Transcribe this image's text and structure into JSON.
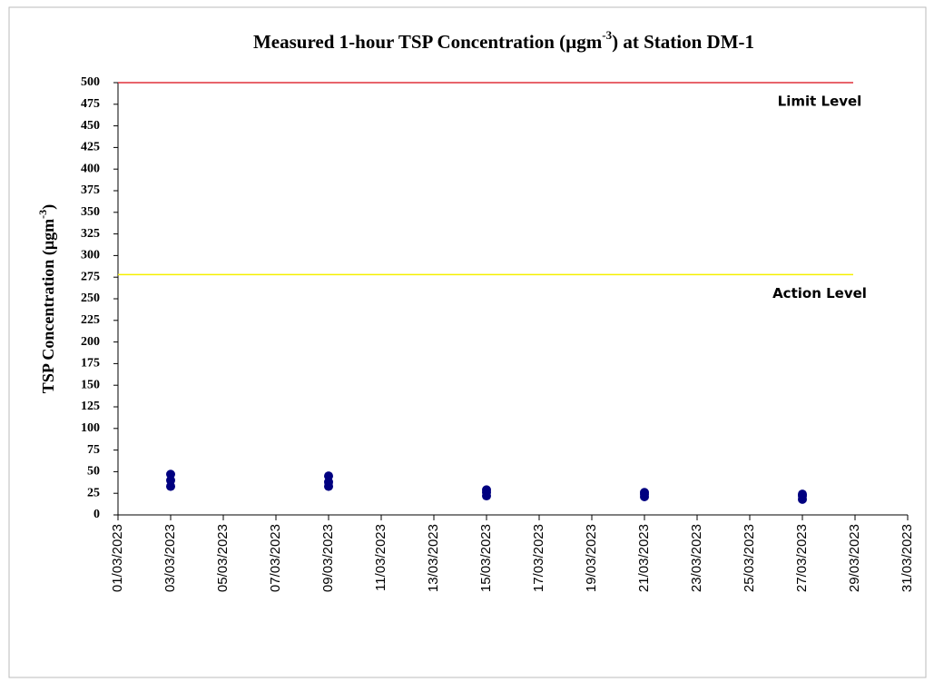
{
  "chart_data": {
    "type": "scatter",
    "title": [
      "Measured 1-hour TSP Concentration (µgm",
      "-3",
      ") at Station DM-1"
    ],
    "ylabel": [
      "TSP Concentration (µgm",
      "-3",
      ")"
    ],
    "series": [
      {
        "color": "#000080",
        "x": [
          "2023-03-03",
          "2023-03-03",
          "2023-03-03",
          "2023-03-09",
          "2023-03-09",
          "2023-03-09",
          "2023-03-15",
          "2023-03-15",
          "2023-03-15",
          "2023-03-21",
          "2023-03-21",
          "2023-03-21",
          "2023-03-27",
          "2023-03-27",
          "2023-03-27"
        ],
        "values": [
          33,
          40,
          47,
          33,
          38,
          45,
          22,
          26,
          29,
          21,
          24,
          26,
          18,
          22,
          24
        ]
      }
    ],
    "reference_lines": [
      {
        "name": "Limit Level",
        "value": 500,
        "color": "#e0303a"
      },
      {
        "name": "Action Level",
        "value": 278,
        "color": "#f5f000"
      }
    ],
    "xlim": [
      "2023-03-01",
      "2023-03-31"
    ],
    "xticks": [
      {
        "value": "2023-03-01",
        "label": "01/03/2023"
      },
      {
        "value": "2023-03-03",
        "label": "03/03/2023"
      },
      {
        "value": "2023-03-05",
        "label": "05/03/2023"
      },
      {
        "value": "2023-03-07",
        "label": "07/03/2023"
      },
      {
        "value": "2023-03-09",
        "label": "09/03/2023"
      },
      {
        "value": "2023-03-11",
        "label": "11/03/2023"
      },
      {
        "value": "2023-03-13",
        "label": "13/03/2023"
      },
      {
        "value": "2023-03-15",
        "label": "15/03/2023"
      },
      {
        "value": "2023-03-17",
        "label": "17/03/2023"
      },
      {
        "value": "2023-03-19",
        "label": "19/03/2023"
      },
      {
        "value": "2023-03-21",
        "label": "21/03/2023"
      },
      {
        "value": "2023-03-23",
        "label": "23/03/2023"
      },
      {
        "value": "2023-03-25",
        "label": "25/03/2023"
      },
      {
        "value": "2023-03-27",
        "label": "27/03/2023"
      },
      {
        "value": "2023-03-29",
        "label": "29/03/2023"
      },
      {
        "value": "2023-03-31",
        "label": "31/03/2023"
      }
    ],
    "ylim": [
      0,
      500
    ],
    "yticks": [
      0,
      25,
      50,
      75,
      100,
      125,
      150,
      175,
      200,
      225,
      250,
      275,
      300,
      325,
      350,
      375,
      400,
      425,
      450,
      475,
      500
    ]
  }
}
